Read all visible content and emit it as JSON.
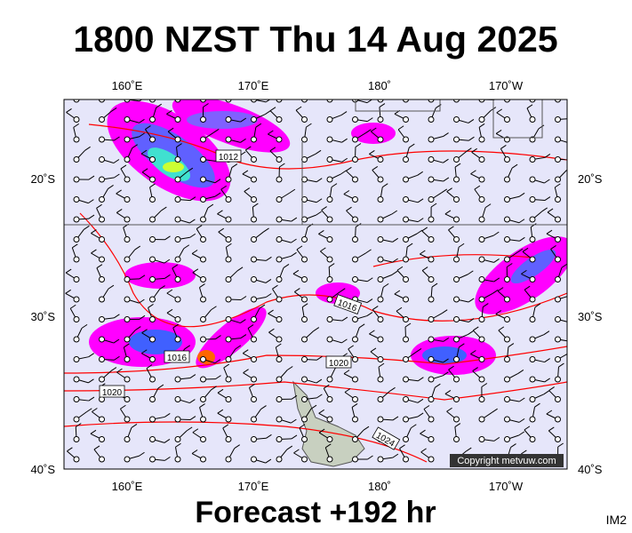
{
  "header": {
    "title": "1800 NZST Thu 14 Aug 2025"
  },
  "map": {
    "lon_labels": [
      "160˚E",
      "170˚E",
      "180˚",
      "170˚W"
    ],
    "lat_labels": [
      "20˚S",
      "30˚S",
      "40˚S"
    ],
    "isobar_labels": [
      "1012",
      "1016",
      "1016",
      "1020",
      "1020",
      "1024"
    ],
    "copyright": "Copyright metvuw.com"
  },
  "footer": {
    "forecast": "Forecast +192 hr",
    "code": "IM2"
  }
}
